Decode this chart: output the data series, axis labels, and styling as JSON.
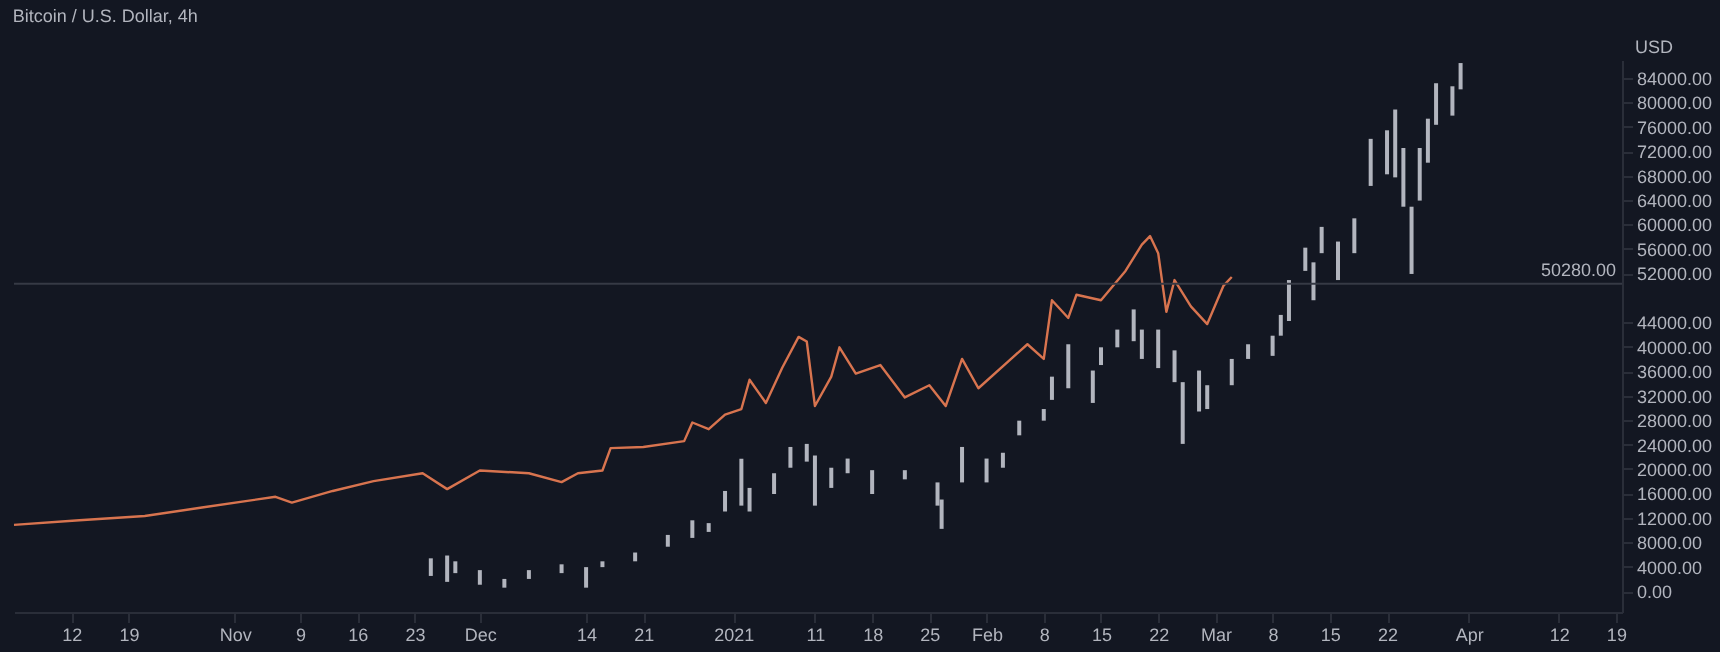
{
  "chart_data": {
    "type": "line",
    "title": "Bitcoin / U.S. Dollar, 4h",
    "ylabel": "USD",
    "xlim": [
      "2020-10-05",
      "2021-04-19T18:00"
    ],
    "xticks": [
      {
        "value": "2020-10-12",
        "label": "12"
      },
      {
        "value": "2020-10-19",
        "label": "19"
      },
      {
        "value": "2020-11-01",
        "label": "Nov"
      },
      {
        "value": "2020-11-09",
        "label": "9"
      },
      {
        "value": "2020-11-16",
        "label": "16"
      },
      {
        "value": "2020-11-23",
        "label": "23"
      },
      {
        "value": "2020-12-01",
        "label": "Dec"
      },
      {
        "value": "2020-12-14",
        "label": "14"
      },
      {
        "value": "2020-12-21",
        "label": "21"
      },
      {
        "value": "2021-01-01",
        "label": "2021"
      },
      {
        "value": "2021-01-11",
        "label": "11"
      },
      {
        "value": "2021-01-18",
        "label": "18"
      },
      {
        "value": "2021-01-25",
        "label": "25"
      },
      {
        "value": "2021-02-01",
        "label": "Feb"
      },
      {
        "value": "2021-02-08",
        "label": "8"
      },
      {
        "value": "2021-02-15",
        "label": "15"
      },
      {
        "value": "2021-02-22",
        "label": "22"
      },
      {
        "value": "2021-03-01",
        "label": "Mar"
      },
      {
        "value": "2021-03-08",
        "label": "8"
      },
      {
        "value": "2021-03-15",
        "label": "15"
      },
      {
        "value": "2021-03-22",
        "label": "22"
      },
      {
        "value": "2021-04-01",
        "label": "Apr"
      },
      {
        "value": "2021-04-12",
        "label": "12"
      },
      {
        "value": "2021-04-19",
        "label": "19"
      }
    ],
    "ylim": [
      -3400,
      86900
    ],
    "yticks": [
      {
        "value": 0,
        "label": "0.00"
      },
      {
        "value": 4000,
        "label": "4000.00"
      },
      {
        "value": 8000,
        "label": "8000.00"
      },
      {
        "value": 12000,
        "label": "12000.00"
      },
      {
        "value": 16000,
        "label": "16000.00"
      },
      {
        "value": 20000,
        "label": "20000.00"
      },
      {
        "value": 24000,
        "label": "24000.00"
      },
      {
        "value": 28000,
        "label": "28000.00"
      },
      {
        "value": 32000,
        "label": "32000.00"
      },
      {
        "value": 36000,
        "label": "36000.00"
      },
      {
        "value": 40000,
        "label": "40000.00"
      },
      {
        "value": 44000,
        "label": "44000.00"
      },
      {
        "value": 52000,
        "label": "52000.00"
      },
      {
        "value": 56000,
        "label": "56000.00"
      },
      {
        "value": 60000,
        "label": "60000.00"
      },
      {
        "value": 64000,
        "label": "64000.00"
      },
      {
        "value": 68000,
        "label": "68000.00"
      },
      {
        "value": 72000,
        "label": "72000.00"
      },
      {
        "value": 76000,
        "label": "76000.00"
      },
      {
        "value": 80000,
        "label": "80000.00"
      },
      {
        "value": 84000,
        "label": "84000.00"
      }
    ],
    "grid": false,
    "ref_lines": [
      {
        "axis": "y",
        "value": 50280,
        "label": "50280.00",
        "color": "#363a45"
      }
    ],
    "series": [
      {
        "color": "#d8744f",
        "x": [
          "2020-10-05",
          "2020-10-13",
          "2020-10-21",
          "2020-10-28",
          "2020-11-06",
          "2020-11-08",
          "2020-11-13",
          "2020-11-18",
          "2020-11-24",
          "2020-11-27",
          "2020-12-01",
          "2020-12-07",
          "2020-12-11",
          "2020-12-13",
          "2020-12-16",
          "2020-12-17",
          "2020-12-21",
          "2020-12-26",
          "2020-12-27",
          "2020-12-29",
          "2020-12-31",
          "2021-01-02",
          "2021-01-03",
          "2021-01-05",
          "2021-01-07",
          "2021-01-09",
          "2021-01-10",
          "2021-01-11",
          "2021-01-13",
          "2021-01-14",
          "2021-01-16",
          "2021-01-19",
          "2021-01-22",
          "2021-01-25",
          "2021-01-27",
          "2021-01-29",
          "2021-01-31",
          "2021-02-04",
          "2021-02-06",
          "2021-02-08",
          "2021-02-09",
          "2021-02-11",
          "2021-02-12",
          "2021-02-15",
          "2021-02-18",
          "2021-02-20",
          "2021-02-21",
          "2021-02-22",
          "2021-02-23",
          "2021-02-24",
          "2021-02-26",
          "2021-02-28",
          "2021-03-02",
          "2021-03-03"
        ],
        "values": [
          10850,
          11600,
          12300,
          13700,
          15450,
          14500,
          16400,
          18000,
          19300,
          16700,
          19750,
          19300,
          17850,
          19300,
          19750,
          23400,
          23600,
          24550,
          27600,
          26500,
          28900,
          29800,
          34600,
          30800,
          36550,
          41600,
          40850,
          30300,
          35100,
          39900,
          35600,
          37000,
          31700,
          33700,
          30300,
          38000,
          33200,
          38000,
          40400,
          38000,
          47600,
          44700,
          48500,
          47600,
          52400,
          56700,
          58100,
          55300,
          45700,
          50900,
          46600,
          43700,
          50000,
          51400
        ]
      },
      {
        "type": "bar",
        "color": "#b2b5be",
        "x": [
          "2020-11-25",
          "2020-11-27",
          "2020-11-28",
          "2020-12-01",
          "2020-12-04",
          "2020-12-07",
          "2020-12-11",
          "2020-12-14",
          "2020-12-16",
          "2020-12-20",
          "2020-12-24",
          "2020-12-27",
          "2020-12-29",
          "2020-12-31",
          "2021-01-02",
          "2021-01-03",
          "2021-01-06",
          "2021-01-08",
          "2021-01-10",
          "2021-01-11",
          "2021-01-13",
          "2021-01-15",
          "2021-01-18",
          "2021-01-22",
          "2021-01-26",
          "2021-01-26T12:00",
          "2021-01-29",
          "2021-02-01",
          "2021-02-03",
          "2021-02-05",
          "2021-02-08",
          "2021-02-09",
          "2021-02-11",
          "2021-02-14",
          "2021-02-15",
          "2021-02-17",
          "2021-02-19",
          "2021-02-20",
          "2021-02-22",
          "2021-02-24",
          "2021-02-25",
          "2021-02-27",
          "2021-02-28",
          "2021-03-03",
          "2021-03-05",
          "2021-03-08",
          "2021-03-09",
          "2021-03-10",
          "2021-03-12",
          "2021-03-13",
          "2021-03-14",
          "2021-03-16",
          "2021-03-18",
          "2021-03-20",
          "2021-03-22",
          "2021-03-23",
          "2021-03-24",
          "2021-03-25",
          "2021-03-26",
          "2021-03-27",
          "2021-03-28",
          "2021-03-30",
          "2021-03-31"
        ],
        "base": [
          2500,
          1530,
          2960,
          1060,
          580,
          2010,
          2960,
          580,
          3940,
          4890,
          7280,
          8720,
          9700,
          13040,
          14000,
          13040,
          15900,
          20200,
          21200,
          14000,
          16900,
          19300,
          15900,
          18300,
          14000,
          10200,
          17800,
          17800,
          20200,
          25500,
          27900,
          31300,
          33200,
          30800,
          37000,
          39900,
          40900,
          38000,
          36500,
          34200,
          24100,
          29400,
          29800,
          33700,
          38000,
          38500,
          41800,
          44200,
          52400,
          47600,
          55300,
          50900,
          55300,
          66300,
          68200,
          67700,
          62900,
          51900,
          63900,
          70100,
          76300,
          77800,
          82100
        ],
        "values": [
          2880,
          4310,
          1930,
          2390,
          1430,
          1440,
          1440,
          3360,
          950,
          1440,
          1930,
          2880,
          1440,
          3360,
          7670,
          3860,
          3400,
          3400,
          2900,
          8200,
          3300,
          2400,
          3900,
          1500,
          3800,
          4800,
          5800,
          3900,
          2450,
          2400,
          1900,
          3800,
          7200,
          5300,
          2900,
          2900,
          5200,
          4800,
          6300,
          5200,
          10100,
          6700,
          3900,
          4300,
          2400,
          3300,
          3400,
          6700,
          3800,
          6200,
          4300,
          6300,
          5700,
          7700,
          7200,
          11100,
          9600,
          11000,
          8600,
          7200,
          6800,
          4800,
          4300
        ]
      }
    ]
  }
}
